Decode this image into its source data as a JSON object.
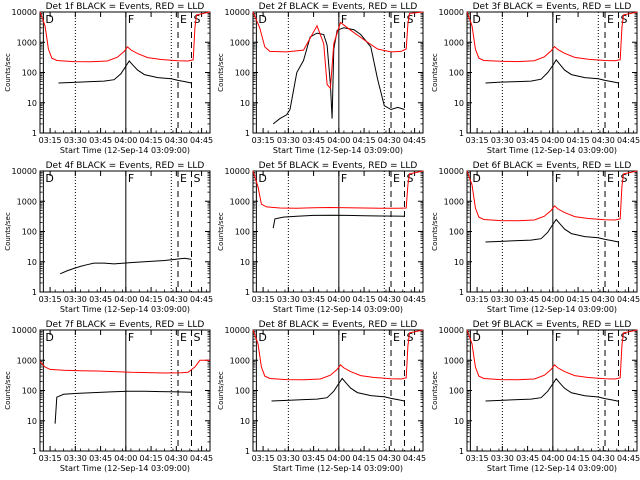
{
  "chart_data": {
    "type": "line",
    "ylabel": "Counts/sec",
    "xlabel": "Start Time (12-Sep-14 03:09:00)",
    "x_ticks": [
      "03:15",
      "03:30",
      "03:45",
      "04:00",
      "04:15",
      "04:30",
      "04:45"
    ],
    "x_tick_minutes": [
      6,
      21,
      36,
      51,
      66,
      81,
      96
    ],
    "xlim_minutes": [
      0,
      101
    ],
    "y_scale": "log",
    "ylim": [
      1,
      10000
    ],
    "y_ticks": [
      "1",
      "10",
      "100",
      "1000",
      "10000"
    ],
    "colors": {
      "events": "#000000",
      "lld": "#ff0000"
    },
    "markers": [
      {
        "label": "D",
        "minute": 2,
        "style": "solid"
      },
      {
        "label": "F",
        "minute": 51,
        "style": "solid"
      },
      {
        "label": "E",
        "minute": 82,
        "style": "dashed"
      },
      {
        "label": "S",
        "minute": 90,
        "style": "dashed"
      }
    ],
    "detectors": [
      {
        "title": "Det 1f BLACK = Events, RED = LLD",
        "events": [
          [
            11,
            45
          ],
          [
            20,
            47
          ],
          [
            30,
            50
          ],
          [
            38,
            52
          ],
          [
            44,
            58
          ],
          [
            48,
            90
          ],
          [
            51,
            160
          ],
          [
            53,
            240
          ],
          [
            55,
            180
          ],
          [
            58,
            120
          ],
          [
            62,
            85
          ],
          [
            70,
            68
          ],
          [
            78,
            62
          ],
          [
            82,
            55
          ],
          [
            86,
            50
          ],
          [
            90,
            45
          ]
        ],
        "lld": [
          [
            0,
            10000
          ],
          [
            3,
            3500
          ],
          [
            5,
            600
          ],
          [
            7,
            300
          ],
          [
            10,
            250
          ],
          [
            20,
            230
          ],
          [
            30,
            225
          ],
          [
            40,
            240
          ],
          [
            46,
            320
          ],
          [
            50,
            500
          ],
          [
            52,
            700
          ],
          [
            54,
            560
          ],
          [
            58,
            420
          ],
          [
            64,
            310
          ],
          [
            72,
            270
          ],
          [
            82,
            245
          ],
          [
            88,
            240
          ],
          [
            91,
            260
          ],
          [
            92,
            3000
          ],
          [
            93,
            8000
          ],
          [
            101,
            10000
          ]
        ]
      },
      {
        "title": "Det 2f BLACK = Events, RED = LLD",
        "events": [
          [
            12,
            2
          ],
          [
            16,
            3
          ],
          [
            20,
            4
          ],
          [
            22,
            6
          ],
          [
            26,
            100
          ],
          [
            30,
            250
          ],
          [
            34,
            1500
          ],
          [
            38,
            2000
          ],
          [
            42,
            1800
          ],
          [
            44,
            800
          ],
          [
            46,
            40
          ],
          [
            47,
            3
          ],
          [
            48,
            600
          ],
          [
            50,
            2500
          ],
          [
            54,
            3000
          ],
          [
            60,
            2600
          ],
          [
            64,
            1800
          ],
          [
            70,
            700
          ],
          [
            74,
            60
          ],
          [
            78,
            8
          ],
          [
            82,
            6
          ],
          [
            86,
            7
          ],
          [
            90,
            6
          ]
        ],
        "lld": [
          [
            0,
            10000
          ],
          [
            4,
            3000
          ],
          [
            7,
            700
          ],
          [
            10,
            500
          ],
          [
            20,
            480
          ],
          [
            30,
            550
          ],
          [
            38,
            3500
          ],
          [
            42,
            900
          ],
          [
            44,
            40
          ],
          [
            46,
            30
          ],
          [
            48,
            900
          ],
          [
            52,
            4500
          ],
          [
            58,
            2500
          ],
          [
            66,
            1200
          ],
          [
            74,
            600
          ],
          [
            82,
            480
          ],
          [
            88,
            500
          ],
          [
            91,
            600
          ],
          [
            92,
            4000
          ],
          [
            93,
            9000
          ],
          [
            101,
            10000
          ]
        ]
      },
      {
        "title": "Det 3f BLACK = Events, RED = LLD",
        "events": [
          [
            11,
            45
          ],
          [
            20,
            48
          ],
          [
            30,
            50
          ],
          [
            38,
            52
          ],
          [
            44,
            60
          ],
          [
            48,
            100
          ],
          [
            51,
            170
          ],
          [
            53,
            260
          ],
          [
            55,
            190
          ],
          [
            58,
            120
          ],
          [
            62,
            85
          ],
          [
            70,
            68
          ],
          [
            78,
            62
          ],
          [
            82,
            55
          ],
          [
            86,
            50
          ],
          [
            90,
            45
          ]
        ],
        "lld": [
          [
            0,
            10000
          ],
          [
            3,
            3500
          ],
          [
            5,
            600
          ],
          [
            7,
            300
          ],
          [
            10,
            250
          ],
          [
            20,
            235
          ],
          [
            30,
            230
          ],
          [
            40,
            245
          ],
          [
            46,
            330
          ],
          [
            50,
            520
          ],
          [
            52,
            720
          ],
          [
            54,
            570
          ],
          [
            58,
            430
          ],
          [
            64,
            315
          ],
          [
            72,
            275
          ],
          [
            82,
            250
          ],
          [
            88,
            245
          ],
          [
            91,
            265
          ],
          [
            92,
            3000
          ],
          [
            93,
            8000
          ],
          [
            101,
            10000
          ]
        ]
      },
      {
        "title": "Det 4f BLACK = Events, RED = LLD",
        "events": [
          [
            12,
            4
          ],
          [
            16,
            5
          ],
          [
            20,
            6
          ],
          [
            24,
            7
          ],
          [
            28,
            8
          ],
          [
            32,
            9
          ],
          [
            38,
            9
          ],
          [
            44,
            8.5
          ],
          [
            50,
            9
          ],
          [
            56,
            9.5
          ],
          [
            62,
            10
          ],
          [
            68,
            10.5
          ],
          [
            74,
            11
          ],
          [
            80,
            12
          ],
          [
            86,
            13
          ],
          [
            90,
            12
          ]
        ],
        "lld": []
      },
      {
        "title": "Det 5f BLACK = Events, RED = LLD",
        "events": [
          [
            12,
            130
          ],
          [
            13,
            260
          ],
          [
            18,
            300
          ],
          [
            26,
            320
          ],
          [
            36,
            340
          ],
          [
            46,
            345
          ],
          [
            56,
            340
          ],
          [
            66,
            330
          ],
          [
            76,
            325
          ],
          [
            86,
            322
          ],
          [
            90,
            320
          ]
        ],
        "lld": [
          [
            0,
            10000
          ],
          [
            3,
            3000
          ],
          [
            5,
            800
          ],
          [
            8,
            650
          ],
          [
            16,
            600
          ],
          [
            26,
            590
          ],
          [
            36,
            610
          ],
          [
            46,
            620
          ],
          [
            56,
            610
          ],
          [
            66,
            600
          ],
          [
            76,
            590
          ],
          [
            86,
            585
          ],
          [
            91,
            600
          ],
          [
            92,
            3500
          ],
          [
            93,
            8000
          ],
          [
            101,
            10000
          ]
        ]
      },
      {
        "title": "Det 6f BLACK = Events, RED = LLD",
        "events": [
          [
            11,
            45
          ],
          [
            20,
            47
          ],
          [
            30,
            50
          ],
          [
            38,
            52
          ],
          [
            44,
            58
          ],
          [
            48,
            95
          ],
          [
            51,
            170
          ],
          [
            53,
            250
          ],
          [
            55,
            185
          ],
          [
            58,
            120
          ],
          [
            62,
            85
          ],
          [
            70,
            68
          ],
          [
            78,
            62
          ],
          [
            82,
            55
          ],
          [
            86,
            50
          ],
          [
            90,
            45
          ]
        ],
        "lld": [
          [
            0,
            10000
          ],
          [
            3,
            3500
          ],
          [
            5,
            600
          ],
          [
            7,
            300
          ],
          [
            10,
            250
          ],
          [
            20,
            230
          ],
          [
            30,
            225
          ],
          [
            40,
            240
          ],
          [
            46,
            320
          ],
          [
            50,
            500
          ],
          [
            52,
            700
          ],
          [
            54,
            560
          ],
          [
            58,
            420
          ],
          [
            64,
            310
          ],
          [
            72,
            270
          ],
          [
            82,
            245
          ],
          [
            88,
            240
          ],
          [
            91,
            260
          ],
          [
            92,
            3000
          ],
          [
            93,
            8000
          ],
          [
            101,
            10000
          ]
        ]
      },
      {
        "title": "Det 7f BLACK = Events, RED = LLD",
        "events": [
          [
            9,
            8
          ],
          [
            10,
            60
          ],
          [
            14,
            75
          ],
          [
            22,
            80
          ],
          [
            32,
            85
          ],
          [
            42,
            90
          ],
          [
            52,
            95
          ],
          [
            62,
            95
          ],
          [
            72,
            92
          ],
          [
            82,
            90
          ],
          [
            90,
            88
          ]
        ],
        "lld": [
          [
            0,
            900
          ],
          [
            3,
            600
          ],
          [
            6,
            500
          ],
          [
            14,
            470
          ],
          [
            24,
            450
          ],
          [
            34,
            440
          ],
          [
            44,
            420
          ],
          [
            54,
            400
          ],
          [
            64,
            390
          ],
          [
            74,
            380
          ],
          [
            84,
            385
          ],
          [
            88,
            400
          ],
          [
            92,
            600
          ],
          [
            95,
            1000
          ],
          [
            101,
            1000
          ]
        ]
      },
      {
        "title": "Det 8f BLACK = Events, RED = LLD",
        "events": [
          [
            11,
            45
          ],
          [
            20,
            47
          ],
          [
            30,
            50
          ],
          [
            38,
            52
          ],
          [
            44,
            58
          ],
          [
            48,
            95
          ],
          [
            51,
            170
          ],
          [
            53,
            250
          ],
          [
            55,
            185
          ],
          [
            58,
            120
          ],
          [
            62,
            85
          ],
          [
            70,
            68
          ],
          [
            78,
            62
          ],
          [
            82,
            55
          ],
          [
            86,
            50
          ],
          [
            90,
            45
          ]
        ],
        "lld": [
          [
            0,
            10000
          ],
          [
            3,
            3500
          ],
          [
            5,
            600
          ],
          [
            7,
            300
          ],
          [
            10,
            250
          ],
          [
            20,
            230
          ],
          [
            30,
            225
          ],
          [
            40,
            240
          ],
          [
            46,
            320
          ],
          [
            50,
            500
          ],
          [
            52,
            700
          ],
          [
            54,
            560
          ],
          [
            58,
            420
          ],
          [
            64,
            310
          ],
          [
            72,
            270
          ],
          [
            82,
            245
          ],
          [
            88,
            240
          ],
          [
            91,
            260
          ],
          [
            92,
            3000
          ],
          [
            93,
            8000
          ],
          [
            101,
            10000
          ]
        ]
      },
      {
        "title": "Det 9f BLACK = Events, RED = LLD",
        "events": [
          [
            11,
            45
          ],
          [
            20,
            47
          ],
          [
            30,
            50
          ],
          [
            38,
            52
          ],
          [
            44,
            58
          ],
          [
            48,
            95
          ],
          [
            51,
            165
          ],
          [
            53,
            245
          ],
          [
            55,
            180
          ],
          [
            58,
            118
          ],
          [
            62,
            84
          ],
          [
            70,
            67
          ],
          [
            78,
            61
          ],
          [
            82,
            54
          ],
          [
            86,
            49
          ],
          [
            90,
            44
          ]
        ],
        "lld": [
          [
            0,
            10000
          ],
          [
            3,
            3500
          ],
          [
            5,
            600
          ],
          [
            7,
            300
          ],
          [
            10,
            250
          ],
          [
            20,
            230
          ],
          [
            30,
            225
          ],
          [
            40,
            240
          ],
          [
            46,
            320
          ],
          [
            50,
            500
          ],
          [
            52,
            700
          ],
          [
            54,
            560
          ],
          [
            58,
            420
          ],
          [
            64,
            310
          ],
          [
            72,
            270
          ],
          [
            82,
            245
          ],
          [
            88,
            240
          ],
          [
            91,
            260
          ],
          [
            92,
            3000
          ],
          [
            93,
            8000
          ],
          [
            101,
            10000
          ]
        ]
      }
    ]
  }
}
